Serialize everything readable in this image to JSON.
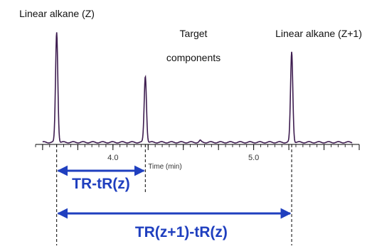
{
  "chart_data": {
    "type": "line",
    "xlabel": "Time (min)",
    "ylabel": "",
    "xlim": [
      3.45,
      5.75
    ],
    "ylim": [
      0,
      1
    ],
    "x_ticks": [
      {
        "value": 4.0,
        "label": "4.0"
      },
      {
        "value": 5.0,
        "label": "5.0"
      }
    ],
    "grid": false,
    "series": [
      {
        "color": "#3d1c4f",
        "peaks": [
          {
            "x": 3.6,
            "height": 1.0,
            "width": 0.008
          },
          {
            "x": 4.23,
            "height": 0.6,
            "width": 0.008
          },
          {
            "x": 5.27,
            "height": 0.82,
            "width": 0.008
          }
        ]
      }
    ],
    "annotations": {
      "peak_labels": [
        {
          "lines": [
            "Linear alkane (Z)"
          ],
          "peak": 0
        },
        {
          "lines": [
            "Target",
            "components"
          ],
          "peak": 1
        },
        {
          "lines": [
            "Linear alkane (Z+1)"
          ],
          "peak": 2
        }
      ],
      "intervals": [
        {
          "label": "TR-tR(z)",
          "from_peak": 0,
          "to_peak": 1
        },
        {
          "label": "TR(z+1)-tR(z)",
          "from_peak": 0,
          "to_peak": 2
        }
      ]
    },
    "colors": {
      "trace": "#3d1c4f",
      "arrow": "#1f3fbf",
      "axis": "#000000"
    }
  }
}
